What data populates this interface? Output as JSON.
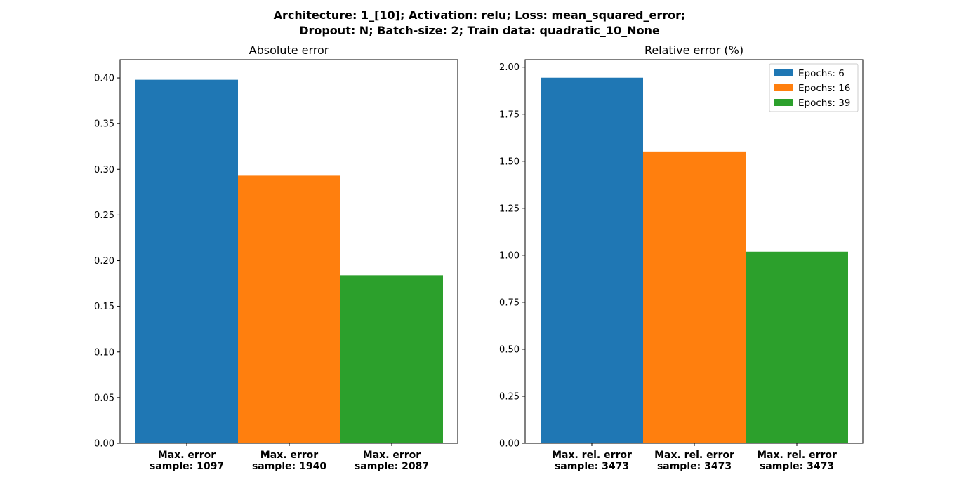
{
  "title_line1": "Architecture: 1_[10]; Activation: relu; Loss: mean_squared_error;",
  "title_line2": "Dropout: N; Batch-size: 2; Train data: quadratic_10_None",
  "chart_data": [
    {
      "type": "bar",
      "title": "Absolute error",
      "categories": [
        [
          "Max. error",
          "sample: 1097"
        ],
        [
          "Max. error",
          "sample: 1940"
        ],
        [
          "Max. error",
          "sample: 2087"
        ]
      ],
      "values": [
        0.398,
        0.293,
        0.184
      ],
      "colors": [
        "#1f77b4",
        "#ff7f0e",
        "#2ca02c"
      ],
      "ylim": [
        0,
        0.42
      ],
      "yticks": [
        "0.00",
        "0.05",
        "0.10",
        "0.15",
        "0.20",
        "0.25",
        "0.30",
        "0.35",
        "0.40"
      ],
      "grid": false
    },
    {
      "type": "bar",
      "title": "Relative error (%)",
      "categories": [
        [
          "Max. rel. error",
          "sample: 3473"
        ],
        [
          "Max. rel. error",
          "sample: 3473"
        ],
        [
          "Max. rel. error",
          "sample: 3473"
        ]
      ],
      "values": [
        1.944,
        1.552,
        1.019
      ],
      "colors": [
        "#1f77b4",
        "#ff7f0e",
        "#2ca02c"
      ],
      "ylim": [
        0,
        2.04
      ],
      "yticks": [
        "0.00",
        "0.25",
        "0.50",
        "0.75",
        "1.00",
        "1.25",
        "1.50",
        "1.75",
        "2.00"
      ],
      "grid": false,
      "legend": {
        "placement": "top-right",
        "entries": [
          {
            "label": "Epochs: 6",
            "color": "#1f77b4"
          },
          {
            "label": "Epochs: 16",
            "color": "#ff7f0e"
          },
          {
            "label": "Epochs: 39",
            "color": "#2ca02c"
          }
        ]
      }
    }
  ]
}
